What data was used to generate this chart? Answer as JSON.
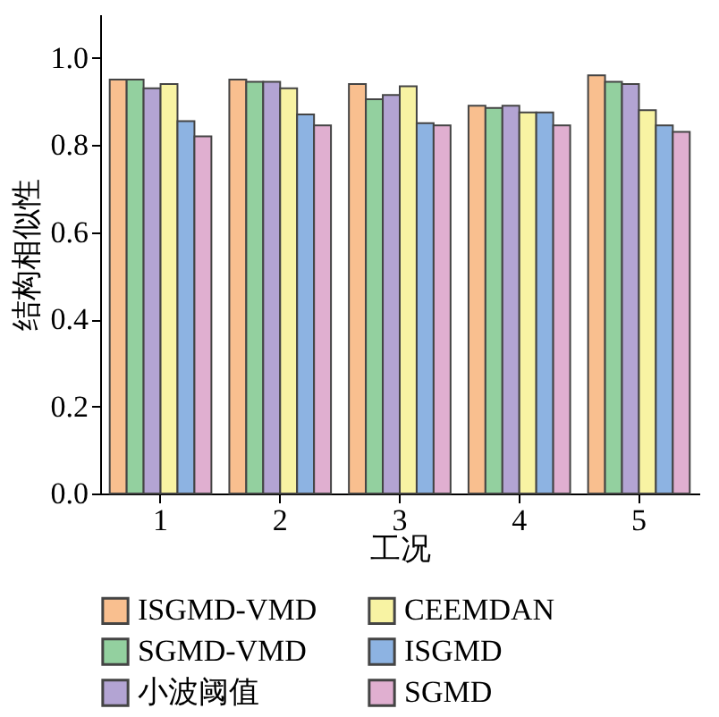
{
  "chart_data": {
    "type": "bar",
    "xlabel": "工况",
    "ylabel": "结构相似性",
    "categories": [
      "1",
      "2",
      "3",
      "4",
      "5"
    ],
    "series": [
      {
        "name": "ISGMD-VMD",
        "color": "#f9bf8f",
        "values": [
          0.95,
          0.95,
          0.94,
          0.89,
          0.96
        ]
      },
      {
        "name": "SGMD-VMD",
        "color": "#93d09f",
        "values": [
          0.95,
          0.945,
          0.905,
          0.885,
          0.945
        ]
      },
      {
        "name": "小波阈值",
        "color": "#b3a4d3",
        "values": [
          0.93,
          0.945,
          0.915,
          0.89,
          0.94
        ]
      },
      {
        "name": "CEEMDAN",
        "color": "#f8f3a3",
        "values": [
          0.94,
          0.93,
          0.935,
          0.875,
          0.88
        ]
      },
      {
        "name": "ISGMD",
        "color": "#8db3e2",
        "values": [
          0.855,
          0.87,
          0.85,
          0.875,
          0.845
        ]
      },
      {
        "name": "SGMD",
        "color": "#e0afd0",
        "values": [
          0.82,
          0.845,
          0.845,
          0.845,
          0.83
        ]
      }
    ],
    "ylim": [
      0,
      1.1
    ],
    "yticks": [
      {
        "value": 0,
        "label": "0.0"
      },
      0.2,
      0.4,
      0.6,
      0.8,
      {
        "value": 1.0,
        "label": "1.0"
      }
    ],
    "grid": false,
    "legend": "bottom"
  }
}
